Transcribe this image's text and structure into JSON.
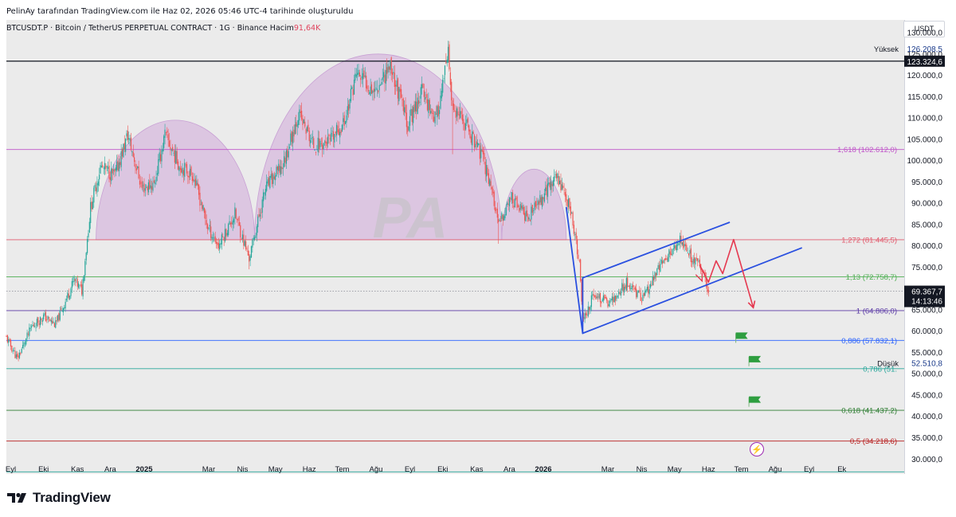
{
  "header": {
    "caption": "PelinAy tarafından TradingView.com ile Haz 02, 2026 05:46 UTC-4 tarihinde oluşturuldu"
  },
  "symbol_line": {
    "text": "BTCUSDT.P · Bitcoin / TetherUS PERPETUAL CONTRACT · 1G · Binance  Hacim",
    "volume": "91,64K"
  },
  "axis": {
    "currency": "USDT"
  },
  "markers": {
    "high_label": "Yüksek",
    "high_value": "126.208,5",
    "low_label": "Düşük",
    "low_value": "52.510,8",
    "line_value": "123.324,6",
    "current_price": "69.367,7",
    "countdown": "14:13:46"
  },
  "branding": {
    "name": "TradingView"
  },
  "colors": {
    "up": "#26a69a",
    "down": "#ef5350",
    "dome": "#cfa8d8",
    "channel": "#2a50e0",
    "projection": "#e53950"
  },
  "icons": [
    "tradingview-logo-icon",
    "lightning-icon",
    "flag-icon",
    "watermark-logo-icon"
  ],
  "chart_data": {
    "type": "candlestick",
    "interval": "1G",
    "price_axis": {
      "range": [
        26500,
        133000
      ],
      "ticks": [
        "130.000,0",
        "125.000,0",
        "120.000,0",
        "115.000,0",
        "110.000,0",
        "105.000,0",
        "100.000,0",
        "95.000,0",
        "90.000,0",
        "85.000,0",
        "80.000,0",
        "75.000,0",
        "65.000,0",
        "60.000,0",
        "55.000,0",
        "50.000,0",
        "45.000,0",
        "40.000,0",
        "35.000,0",
        "30.000,0"
      ]
    },
    "time_axis": {
      "range": [
        "2024-08-28",
        "2026-11-27"
      ],
      "ticks": [
        {
          "label": "Eyl",
          "date": "2024-09-01"
        },
        {
          "label": "Eki",
          "date": "2024-10-01"
        },
        {
          "label": "Kas",
          "date": "2024-11-01"
        },
        {
          "label": "Ara",
          "date": "2024-12-01"
        },
        {
          "label": "2025",
          "date": "2025-01-01",
          "bold": true
        },
        {
          "label": "Mar",
          "date": "2025-03-01"
        },
        {
          "label": "Nis",
          "date": "2025-04-01"
        },
        {
          "label": "May",
          "date": "2025-05-01"
        },
        {
          "label": "Haz",
          "date": "2025-06-01"
        },
        {
          "label": "Tem",
          "date": "2025-07-01"
        },
        {
          "label": "Ağu",
          "date": "2025-08-01"
        },
        {
          "label": "Eyl",
          "date": "2025-09-01"
        },
        {
          "label": "Eki",
          "date": "2025-10-01"
        },
        {
          "label": "Kas",
          "date": "2025-11-01"
        },
        {
          "label": "Ara",
          "date": "2025-12-01"
        },
        {
          "label": "2026",
          "date": "2026-01-01",
          "bold": true
        },
        {
          "label": "Mar",
          "date": "2026-03-01"
        },
        {
          "label": "Nis",
          "date": "2026-04-01"
        },
        {
          "label": "May",
          "date": "2026-05-01"
        },
        {
          "label": "Haz",
          "date": "2026-06-01"
        },
        {
          "label": "Tem",
          "date": "2026-07-01"
        },
        {
          "label": "Ağu",
          "date": "2026-08-01"
        },
        {
          "label": "Eyl",
          "date": "2026-09-01"
        },
        {
          "label": "Ek",
          "date": "2026-10-01"
        }
      ]
    },
    "price_path": [
      [
        "2024-08-28",
        58500
      ],
      [
        "2024-09-07",
        53500
      ],
      [
        "2024-09-20",
        61000
      ],
      [
        "2024-10-01",
        63500
      ],
      [
        "2024-10-12",
        61500
      ],
      [
        "2024-10-29",
        72000
      ],
      [
        "2024-11-05",
        69500
      ],
      [
        "2024-11-13",
        89000
      ],
      [
        "2024-11-22",
        98500
      ],
      [
        "2024-12-05",
        96500
      ],
      [
        "2024-12-17",
        106000
      ],
      [
        "2024-12-30",
        93500
      ],
      [
        "2025-01-10",
        94500
      ],
      [
        "2025-01-20",
        106000
      ],
      [
        "2025-02-02",
        99000
      ],
      [
        "2025-02-15",
        96500
      ],
      [
        "2025-02-28",
        84500
      ],
      [
        "2025-03-10",
        80000
      ],
      [
        "2025-03-25",
        87500
      ],
      [
        "2025-04-07",
        77000
      ],
      [
        "2025-04-22",
        93500
      ],
      [
        "2025-05-08",
        99000
      ],
      [
        "2025-05-22",
        111000
      ],
      [
        "2025-06-05",
        103500
      ],
      [
        "2025-06-20",
        104500
      ],
      [
        "2025-07-03",
        109000
      ],
      [
        "2025-07-14",
        120500
      ],
      [
        "2025-07-31",
        116500
      ],
      [
        "2025-08-14",
        122500
      ],
      [
        "2025-08-30",
        108500
      ],
      [
        "2025-09-12",
        116500
      ],
      [
        "2025-09-25",
        109500
      ],
      [
        "2025-10-06",
        124500
      ],
      [
        "2025-10-10",
        111500
      ],
      [
        "2025-10-22",
        108500
      ],
      [
        "2025-11-05",
        101500
      ],
      [
        "2025-11-14",
        94500
      ],
      [
        "2025-11-21",
        84500
      ],
      [
        "2025-12-02",
        91500
      ],
      [
        "2025-12-18",
        86500
      ],
      [
        "2026-01-05",
        93500
      ],
      [
        "2026-01-14",
        96500
      ],
      [
        "2026-01-26",
        88500
      ],
      [
        "2026-02-03",
        75500
      ],
      [
        "2026-02-06",
        62500
      ],
      [
        "2026-02-16",
        68500
      ],
      [
        "2026-03-03",
        66500
      ],
      [
        "2026-03-18",
        71500
      ],
      [
        "2026-04-02",
        67500
      ],
      [
        "2026-04-18",
        75500
      ],
      [
        "2026-05-01",
        79500
      ],
      [
        "2026-05-06",
        81500
      ],
      [
        "2026-05-16",
        77500
      ],
      [
        "2026-05-28",
        73500
      ],
      [
        "2026-06-01",
        69368
      ]
    ],
    "notable_wicks": [
      [
        "2025-10-10",
        101500
      ],
      [
        "2025-10-06",
        126200
      ],
      [
        "2026-02-06",
        60000
      ],
      [
        "2025-11-21",
        80500
      ],
      [
        "2025-04-07",
        74500
      ]
    ],
    "horizontal_lines": [
      {
        "price": 123324.6,
        "label": "",
        "color": "#131722"
      },
      {
        "price": 102612.0,
        "label": "1,618 (102.612,0)",
        "color": "#c054c9"
      },
      {
        "price": 81445.5,
        "label": "1,272 (81.445,5)",
        "color": "#e25a6c"
      },
      {
        "price": 72758.7,
        "label": "1,13 (72.758,7)",
        "color": "#4caf50"
      },
      {
        "price": 64806.0,
        "label": "1 (64.806,0)",
        "color": "#5b3aa6"
      },
      {
        "price": 57832.1,
        "label": "0,886 (57.832,1)",
        "color": "#2962ff"
      },
      {
        "price": 51200,
        "label": "0,786 (51.",
        "color": "#26a69a"
      },
      {
        "price": 41437.2,
        "label": "0,618 (41.437,2)",
        "color": "#2e7d32"
      },
      {
        "price": 34218.6,
        "label": "0,5 (34.218,6)",
        "color": "#b71c1c"
      },
      {
        "price": 27000,
        "label": "",
        "color": "#26a69a"
      }
    ],
    "domes": [
      {
        "start": "2024-11-18",
        "end": "2025-04-12",
        "peak": 109500
      },
      {
        "start": "2025-04-12",
        "end": "2025-11-24",
        "peak": 125000
      },
      {
        "start": "2025-11-24",
        "end": "2026-01-22",
        "peak": 98000
      }
    ],
    "channel": {
      "upper": [
        [
          "2026-02-06",
          72500
        ],
        [
          "2026-06-20",
          85500
        ]
      ],
      "lower": [
        [
          "2026-02-06",
          59500
        ],
        [
          "2026-08-25",
          79500
        ]
      ],
      "drop_leg": [
        [
          "2026-01-22",
          89000
        ],
        [
          "2026-02-06",
          59500
        ]
      ]
    },
    "projection": [
      [
        "2026-05-24",
        75500
      ],
      [
        "2026-06-01",
        71500
      ],
      [
        "2026-06-08",
        76500
      ],
      [
        "2026-06-14",
        73500
      ],
      [
        "2026-06-24",
        81500
      ],
      [
        "2026-07-12",
        65500
      ]
    ],
    "flags": [
      [
        "2026-06-26",
        59500
      ],
      [
        "2026-07-08",
        54000
      ],
      [
        "2026-07-08",
        44500
      ]
    ],
    "watermark": "PA"
  }
}
